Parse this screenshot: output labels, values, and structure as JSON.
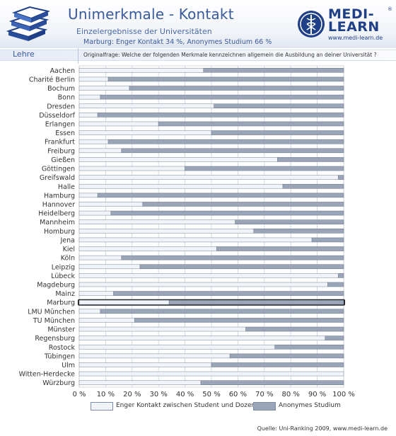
{
  "header": {
    "title": "Unimerkmale - Kontakt",
    "subtitle": "Einzelergebnisse der Universitäten",
    "marburg_note": "Marburg: Enger Kontakt 34 %, Anonymes Studium 66 %"
  },
  "logo": {
    "line1": "MEDI-",
    "line2": "LEARN",
    "url": "www.medi-learn.de",
    "registered": "®"
  },
  "section": {
    "label": "Lehre",
    "question": "Originalfrage: Welche der folgenden Merkmale kennzeichnen allgemein die Ausbildung an deiner Universität ?"
  },
  "colors": {
    "series1": "#f0f3f8",
    "series2": "#9aa6b8",
    "accent": "#3a5a9a"
  },
  "chart_data": {
    "type": "bar",
    "orientation": "horizontal",
    "stacked": true,
    "categories": [
      "Aachen",
      "Charité Berlin",
      "Bochum",
      "Bonn",
      "Dresden",
      "Düsseldorf",
      "Erlangen",
      "Essen",
      "Frankfurt",
      "Freiburg",
      "Gießen",
      "Göttingen",
      "Greifswald",
      "Halle",
      "Hamburg",
      "Hannover",
      "Heidelberg",
      "Mannheim",
      "Homburg",
      "Jena",
      "Kiel",
      "Köln",
      "Leipzig",
      "Lübeck",
      "Magdeburg",
      "Mainz",
      "Marburg",
      "LMU München",
      "TU München",
      "Münster",
      "Regensburg",
      "Rostock",
      "Tübingen",
      "Ulm",
      "Witten-Herdecke",
      "Würzburg"
    ],
    "series": [
      {
        "name": "Enger Kontakt zwischen Student und Dozent",
        "values": [
          47,
          11,
          19,
          8,
          51,
          7,
          30,
          50,
          11,
          16,
          75,
          40,
          98,
          77,
          7,
          24,
          12,
          59,
          66,
          88,
          52,
          16,
          23,
          98,
          94,
          13,
          34,
          8,
          21,
          63,
          93,
          74,
          57,
          50,
          100,
          46
        ]
      },
      {
        "name": "Anonymes Studium",
        "values": [
          53,
          89,
          81,
          92,
          49,
          93,
          70,
          50,
          89,
          84,
          25,
          60,
          2,
          23,
          93,
          76,
          88,
          41,
          34,
          12,
          48,
          84,
          77,
          2,
          6,
          87,
          66,
          92,
          79,
          37,
          7,
          26,
          43,
          50,
          0,
          54
        ]
      }
    ],
    "xlim": [
      0,
      100
    ],
    "xticks": [
      "0 %",
      "10 %",
      "20 %",
      "30 %",
      "40 %",
      "50 %",
      "60 %",
      "70 %",
      "80 %",
      "90 %",
      "100 %"
    ],
    "highlight": "Marburg",
    "legend_position": "bottom",
    "grid": true
  },
  "footer": {
    "source": "Quelle: Uni-Ranking 2009, www.medi-learn.de"
  }
}
